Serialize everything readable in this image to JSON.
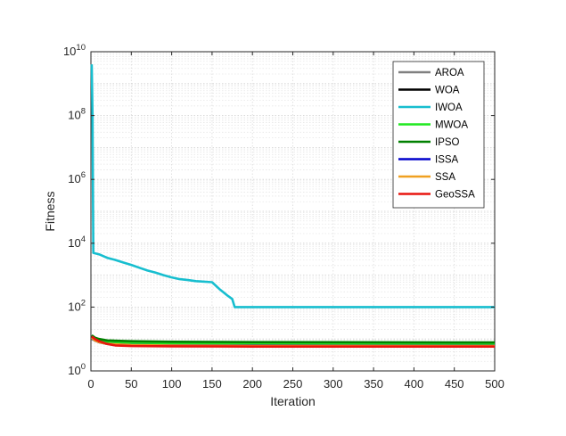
{
  "chart_data": {
    "type": "line",
    "xlabel": "Iteration",
    "ylabel": "Fitness",
    "xlim": [
      0,
      500
    ],
    "ylim": [
      1,
      10000000000
    ],
    "yscale": "log",
    "x_ticks": [
      0,
      50,
      100,
      150,
      200,
      250,
      300,
      350,
      400,
      450,
      500
    ],
    "y_ticks": [
      {
        "value": 1,
        "base": "10",
        "exp": "0"
      },
      {
        "value": 100,
        "base": "10",
        "exp": "2"
      },
      {
        "value": 10000,
        "base": "10",
        "exp": "4"
      },
      {
        "value": 1000000,
        "base": "10",
        "exp": "6"
      },
      {
        "value": 100000000,
        "base": "10",
        "exp": "8"
      },
      {
        "value": 10000000000,
        "base": "10",
        "exp": "10"
      }
    ],
    "grid": true,
    "legend_position": "top-right",
    "series": [
      {
        "name": "AROA",
        "color": "#808080",
        "points": [
          [
            1,
            10
          ],
          [
            5,
            9
          ],
          [
            10,
            8
          ],
          [
            20,
            7
          ],
          [
            50,
            6.8
          ],
          [
            100,
            6.7
          ],
          [
            200,
            6.6
          ],
          [
            500,
            6.5
          ]
        ]
      },
      {
        "name": "WOA",
        "color": "#000000",
        "points": [
          [
            1,
            11
          ],
          [
            5,
            9
          ],
          [
            10,
            8
          ],
          [
            20,
            7.5
          ],
          [
            50,
            7
          ],
          [
            100,
            6.9
          ],
          [
            200,
            6.8
          ],
          [
            500,
            6.6
          ]
        ]
      },
      {
        "name": "IWOA",
        "color": "#17BECF",
        "points": [
          [
            1,
            4000000000
          ],
          [
            2,
            100000000
          ],
          [
            3,
            5000
          ],
          [
            10,
            4500
          ],
          [
            20,
            3500
          ],
          [
            30,
            3000
          ],
          [
            40,
            2500
          ],
          [
            50,
            2100
          ],
          [
            60,
            1700
          ],
          [
            70,
            1400
          ],
          [
            80,
            1200
          ],
          [
            90,
            1000
          ],
          [
            100,
            850
          ],
          [
            110,
            750
          ],
          [
            120,
            700
          ],
          [
            130,
            650
          ],
          [
            150,
            600
          ],
          [
            160,
            350
          ],
          [
            170,
            220
          ],
          [
            175,
            180
          ],
          [
            178,
            100
          ],
          [
            500,
            100
          ]
        ]
      },
      {
        "name": "MWOA",
        "color": "#22E822",
        "points": [
          [
            1,
            12
          ],
          [
            5,
            10
          ],
          [
            10,
            9
          ],
          [
            20,
            8
          ],
          [
            50,
            7.5
          ],
          [
            100,
            7.3
          ],
          [
            200,
            7.2
          ],
          [
            500,
            7.1
          ]
        ]
      },
      {
        "name": "IPSO",
        "color": "#008000",
        "points": [
          [
            1,
            13
          ],
          [
            5,
            11
          ],
          [
            10,
            10
          ],
          [
            20,
            9
          ],
          [
            50,
            8.5
          ],
          [
            100,
            8.2
          ],
          [
            200,
            8
          ],
          [
            500,
            7.8
          ]
        ]
      },
      {
        "name": "ISSA",
        "color": "#0000CC",
        "points": [
          [
            1,
            11
          ],
          [
            5,
            9
          ],
          [
            10,
            8
          ],
          [
            20,
            7
          ],
          [
            50,
            6.5
          ],
          [
            100,
            6.3
          ],
          [
            200,
            6.2
          ],
          [
            500,
            6.1
          ]
        ]
      },
      {
        "name": "SSA",
        "color": "#F0A020",
        "points": [
          [
            1,
            11
          ],
          [
            5,
            9
          ],
          [
            10,
            8
          ],
          [
            20,
            7
          ],
          [
            50,
            6.4
          ],
          [
            100,
            6.2
          ],
          [
            200,
            6.1
          ],
          [
            500,
            6
          ]
        ]
      },
      {
        "name": "GeoSSA",
        "color": "#E8150F",
        "points": [
          [
            1,
            12
          ],
          [
            5,
            10
          ],
          [
            10,
            8.5
          ],
          [
            20,
            7
          ],
          [
            30,
            6.3
          ],
          [
            50,
            6
          ],
          [
            100,
            5.9
          ],
          [
            200,
            5.8
          ],
          [
            500,
            5.8
          ]
        ]
      }
    ]
  }
}
